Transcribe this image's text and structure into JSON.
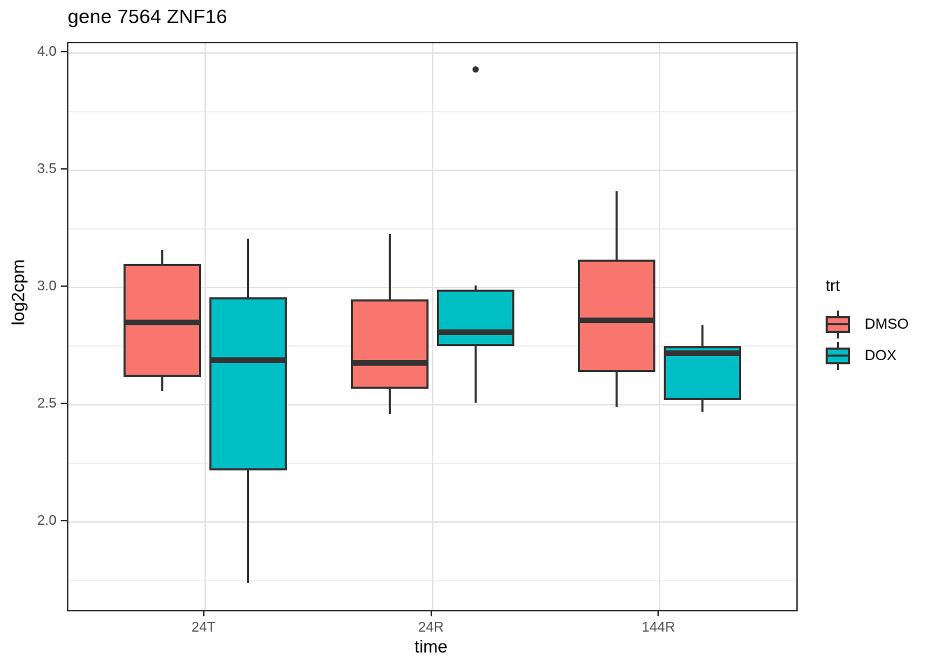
{
  "title": "gene 7564 ZNF16",
  "chart_data": {
    "type": "boxplot",
    "title": "gene 7564 ZNF16",
    "xlabel": "time",
    "ylabel": "log2cpm",
    "categories": [
      "24T",
      "24R",
      "144R"
    ],
    "y_tick_values": [
      4.0,
      3.5,
      3.0,
      2.5,
      2.0
    ],
    "y_tick_labels": [
      "4.0",
      "3.5",
      "3.0",
      "2.5",
      "2.0"
    ],
    "y_minor_tick_values": [
      3.75,
      3.25,
      2.75,
      2.25,
      1.75
    ],
    "ylim": [
      1.625,
      4.042
    ],
    "grid": true,
    "legend_position": "right",
    "legend": {
      "title": "trt",
      "entries": [
        {
          "label": "DMSO",
          "color": "#F8766D"
        },
        {
          "label": "DOX",
          "color": "#00BFC4"
        }
      ]
    },
    "series": [
      {
        "name": "DMSO",
        "color": "#F8766D",
        "boxes": [
          {
            "category": "24T",
            "low": 2.56,
            "q1": 2.62,
            "median": 2.85,
            "q3": 3.1,
            "high": 3.16,
            "outliers": []
          },
          {
            "category": "24R",
            "low": 2.46,
            "q1": 2.57,
            "median": 2.68,
            "q3": 2.95,
            "high": 3.23,
            "outliers": []
          },
          {
            "category": "144R",
            "low": 2.49,
            "q1": 2.64,
            "median": 2.86,
            "q3": 3.12,
            "high": 3.41,
            "outliers": []
          }
        ]
      },
      {
        "name": "DOX",
        "color": "#00BFC4",
        "boxes": [
          {
            "category": "24T",
            "low": 1.74,
            "q1": 2.22,
            "median": 2.69,
            "q3": 2.96,
            "high": 3.21,
            "outliers": []
          },
          {
            "category": "24R",
            "low": 2.51,
            "q1": 2.75,
            "median": 2.81,
            "q3": 2.99,
            "high": 3.01,
            "outliers": [
              3.93
            ]
          },
          {
            "category": "144R",
            "low": 2.47,
            "q1": 2.52,
            "median": 2.72,
            "q3": 2.75,
            "high": 2.84,
            "outliers": []
          }
        ]
      }
    ],
    "colors": {
      "box_border": "#333333",
      "median": "#333333",
      "outlier": "#333333",
      "tick_label": "#4D4D4D",
      "grid_major": "#E4E4E4",
      "grid_minor": "#F1F1F1",
      "panel_border": "#333333",
      "background": "#FFFFFF"
    }
  }
}
